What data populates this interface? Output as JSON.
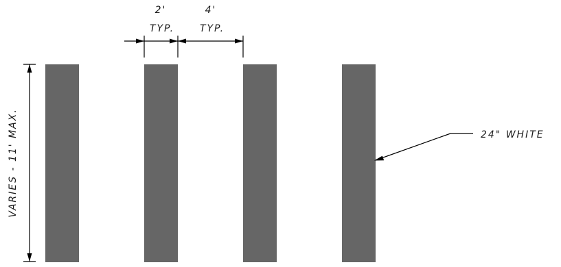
{
  "colors": {
    "stripe": "#666666",
    "line": "#000000",
    "text": "#1a1a1a",
    "background": "#ffffff"
  },
  "stripes": [
    {
      "name": "crosswalk-stripe-1"
    },
    {
      "name": "crosswalk-stripe-2"
    },
    {
      "name": "crosswalk-stripe-3"
    },
    {
      "name": "crosswalk-stripe-4"
    }
  ],
  "dimensions": {
    "stripe_width_value": "2'",
    "stripe_width_note": "TYP.",
    "gap_width_value": "4'",
    "gap_width_note": "TYP.",
    "height_label": "VARIES - 11' MAX."
  },
  "callout": {
    "label": "24\" WHITE"
  }
}
